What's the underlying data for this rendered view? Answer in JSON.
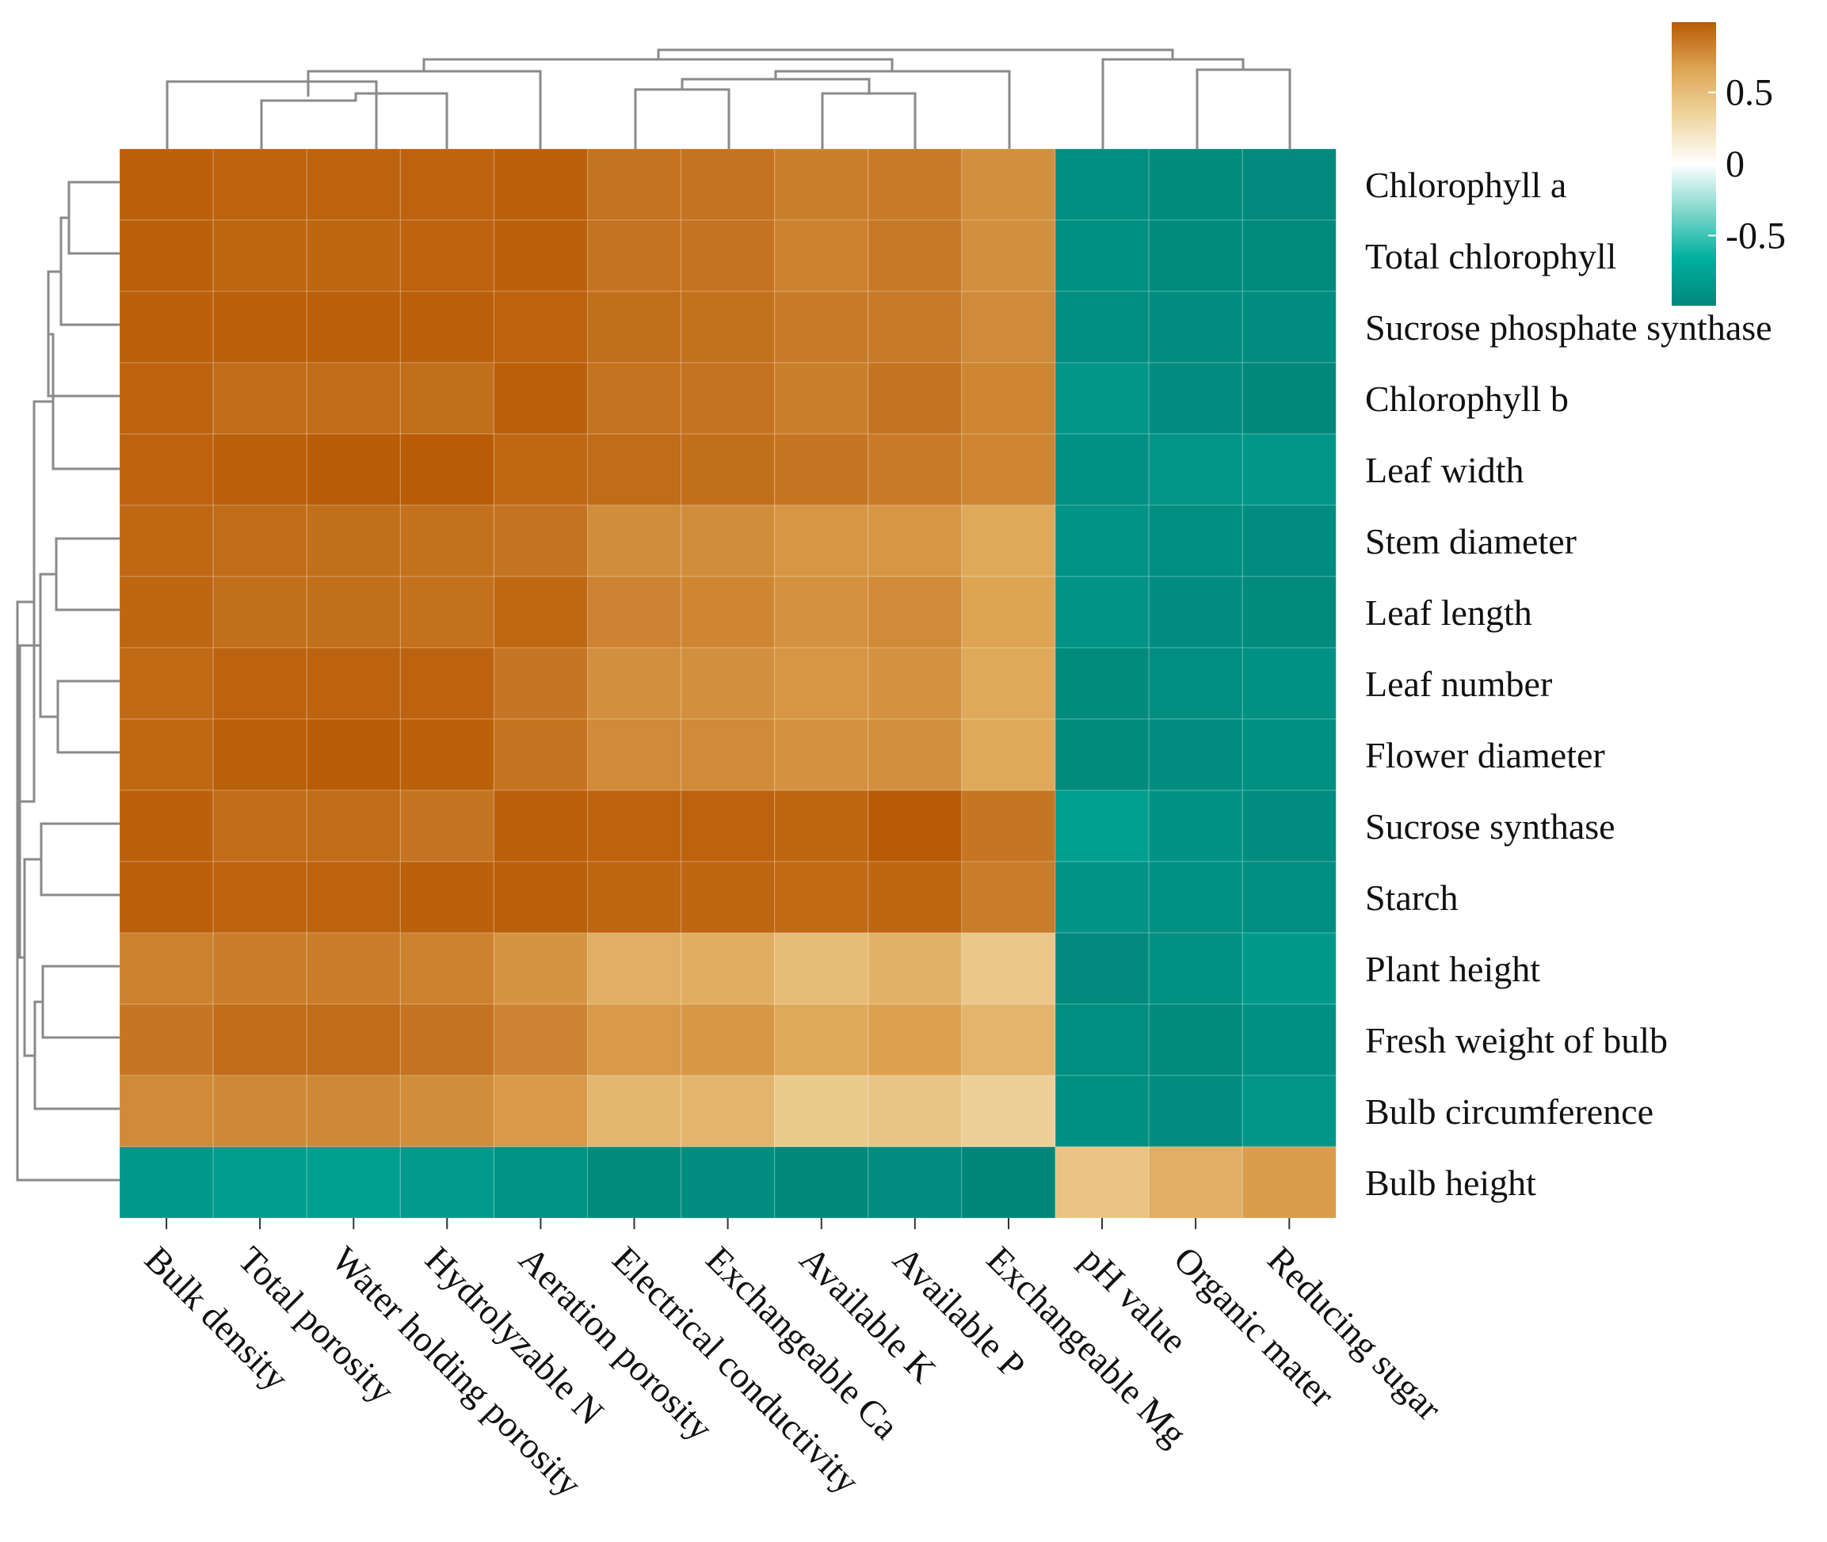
{
  "chart_data": {
    "type": "heatmap",
    "title": "",
    "xlabel": "",
    "ylabel": "",
    "columns": [
      "Bulk density",
      "Total porosity",
      "Water holding porosity",
      "Hydrolyzable N",
      "Aeration porosity",
      "Electrical conductivity",
      "Exchangeable Ca",
      "Available K",
      "Available P",
      "Exchangeable Mg",
      "pH value",
      "Organic mater",
      "Reducing sugar"
    ],
    "rows": [
      "Chlorophyll a",
      "Total chlorophyll",
      "Sucrose phosphate synthase",
      "Chlorophyll b",
      "Leaf width",
      "Stem diameter",
      "Leaf length",
      "Leaf number",
      "Flower diameter",
      "Sucrose synthase",
      "Starch",
      "Plant height",
      "Fresh weight of bulb",
      "Bulb circumference",
      "Bulb height"
    ],
    "values": [
      [
        0.96,
        0.95,
        0.95,
        0.95,
        0.96,
        0.88,
        0.88,
        0.83,
        0.85,
        0.76,
        -0.93,
        -0.96,
        -0.97
      ],
      [
        0.96,
        0.94,
        0.94,
        0.95,
        0.96,
        0.88,
        0.88,
        0.82,
        0.86,
        0.76,
        -0.92,
        -0.96,
        -0.96
      ],
      [
        0.96,
        0.97,
        0.97,
        0.97,
        0.95,
        0.9,
        0.89,
        0.85,
        0.85,
        0.78,
        -0.93,
        -0.95,
        -0.95
      ],
      [
        0.95,
        0.91,
        0.91,
        0.9,
        0.97,
        0.88,
        0.88,
        0.83,
        0.88,
        0.8,
        -0.86,
        -0.94,
        -0.98
      ],
      [
        0.95,
        0.97,
        0.98,
        0.98,
        0.93,
        0.91,
        0.9,
        0.87,
        0.85,
        0.8,
        -0.91,
        -0.88,
        -0.86
      ],
      [
        0.93,
        0.91,
        0.9,
        0.89,
        0.88,
        0.77,
        0.77,
        0.73,
        0.73,
        0.64,
        -0.89,
        -0.93,
        -0.95
      ],
      [
        0.94,
        0.9,
        0.9,
        0.89,
        0.93,
        0.81,
        0.8,
        0.75,
        0.78,
        0.67,
        -0.89,
        -0.94,
        -0.96
      ],
      [
        0.92,
        0.95,
        0.95,
        0.95,
        0.87,
        0.76,
        0.76,
        0.73,
        0.75,
        0.64,
        -0.96,
        -0.93,
        -0.91
      ],
      [
        0.93,
        0.97,
        0.98,
        0.96,
        0.88,
        0.78,
        0.78,
        0.75,
        0.76,
        0.64,
        -0.96,
        -0.94,
        -0.92
      ],
      [
        0.96,
        0.91,
        0.91,
        0.88,
        0.97,
        0.95,
        0.95,
        0.94,
        0.99,
        0.87,
        -0.8,
        -0.9,
        -0.95
      ],
      [
        0.97,
        0.95,
        0.95,
        0.96,
        0.97,
        0.94,
        0.94,
        0.92,
        0.94,
        0.84,
        -0.89,
        -0.91,
        -0.93
      ],
      [
        0.82,
        0.84,
        0.84,
        0.82,
        0.74,
        0.6,
        0.61,
        0.51,
        0.58,
        0.43,
        -0.97,
        -0.91,
        -0.84
      ],
      [
        0.87,
        0.91,
        0.91,
        0.88,
        0.81,
        0.71,
        0.72,
        0.64,
        0.68,
        0.56,
        -0.93,
        -0.96,
        -0.92
      ],
      [
        0.78,
        0.79,
        0.79,
        0.77,
        0.71,
        0.54,
        0.56,
        0.41,
        0.45,
        0.37,
        -0.92,
        -0.94,
        -0.87
      ],
      [
        -0.85,
        -0.81,
        -0.8,
        -0.83,
        -0.89,
        -0.96,
        -0.95,
        -0.98,
        -0.95,
        -0.99,
        0.46,
        0.6,
        0.7
      ]
    ],
    "colorbar": {
      "ticks": [
        "0.5",
        "0",
        "-0.5"
      ],
      "tick_values": [
        0.5,
        0,
        -0.5
      ],
      "range": [
        -0.99,
        0.99
      ],
      "colors": [
        "#00877a",
        "#00b0a0",
        "#7fd8cc",
        "#ffffff",
        "#efd6a0",
        "#dea655",
        "#b85a05"
      ]
    }
  }
}
